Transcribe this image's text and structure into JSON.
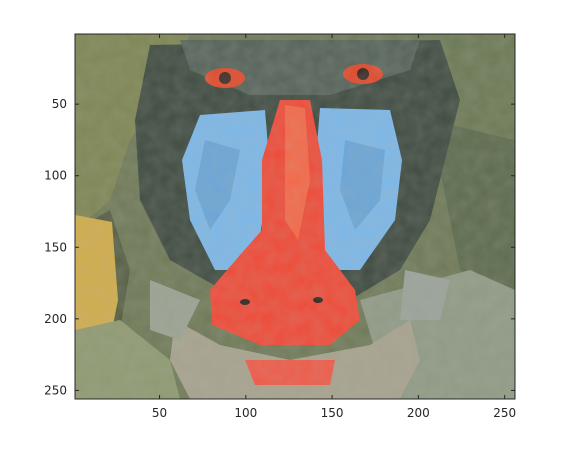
{
  "figure": {
    "kind": "image-plot",
    "subject": "mandrill",
    "x_axis": {
      "range": [
        1,
        256
      ],
      "ticks": [
        50,
        100,
        150,
        200,
        250
      ],
      "tick_labels": [
        "50",
        "100",
        "150",
        "200",
        "250"
      ]
    },
    "y_axis": {
      "range": [
        1,
        256
      ],
      "reversed": true,
      "ticks": [
        50,
        100,
        150,
        200,
        250
      ],
      "tick_labels": [
        "50",
        "100",
        "150",
        "200",
        "250"
      ]
    }
  }
}
